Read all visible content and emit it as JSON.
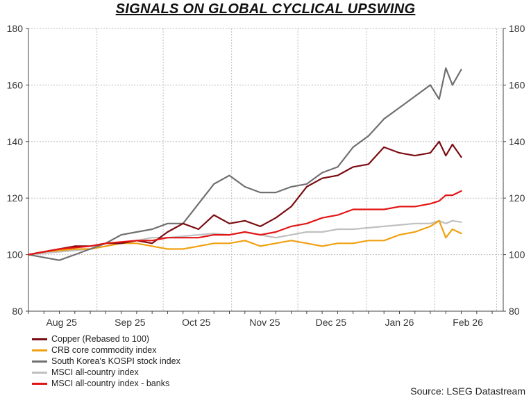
{
  "title": "SIGNALS ON GLOBAL CYCLICAL UPSWING",
  "source": "Source: LSEG Datastream",
  "chart_data": {
    "type": "line",
    "title": "SIGNALS ON GLOBAL CYCLICAL UPSWING",
    "xlabel": "",
    "ylabel": "",
    "ylim": [
      80,
      180
    ],
    "yticks": [
      80,
      100,
      120,
      140,
      160,
      180
    ],
    "xlim": [
      0,
      215
    ],
    "month_labels": [
      {
        "label": "Aug 25",
        "x": 15
      },
      {
        "label": "Sep 25",
        "x": 46
      },
      {
        "label": "Oct 25",
        "x": 76
      },
      {
        "label": "Nov 25",
        "x": 107
      },
      {
        "label": "Dec 25",
        "x": 137
      },
      {
        "label": "Jan 26",
        "x": 168
      },
      {
        "label": "Feb 26",
        "x": 199
      }
    ],
    "month_boundaries": [
      0,
      31,
      61,
      92,
      122,
      153,
      184,
      212
    ],
    "x": [
      0,
      7,
      14,
      21,
      28,
      35,
      42,
      49,
      56,
      63,
      70,
      77,
      84,
      91,
      98,
      105,
      112,
      119,
      126,
      133,
      140,
      147,
      154,
      161,
      168,
      175,
      182,
      186,
      189,
      192,
      196
    ],
    "series": [
      {
        "name": "Copper (Rebased to 100)",
        "color": "#7a0c12",
        "values": [
          100,
          101,
          102,
          103,
          103,
          104,
          104,
          105,
          104,
          108,
          111,
          109,
          114,
          111,
          112,
          110,
          113,
          117,
          124,
          127,
          128,
          131,
          132,
          138,
          136,
          135,
          136,
          140,
          135,
          139,
          134.5
        ]
      },
      {
        "name": "CRB core commodity index",
        "color": "#f0a010",
        "values": [
          100,
          101,
          101.5,
          102,
          102,
          103,
          104,
          104,
          103,
          102,
          102,
          103,
          104,
          104,
          105,
          103,
          104,
          105,
          104,
          103,
          104,
          104,
          105,
          105,
          107,
          108,
          110,
          112,
          106,
          109,
          107.5
        ]
      },
      {
        "name": "South Korea's KOSPI stock index",
        "color": "#707070",
        "values": [
          100,
          99,
          98,
          100,
          102,
          104,
          107,
          108,
          109,
          111,
          111,
          118,
          125,
          128,
          124,
          122,
          122,
          124,
          125,
          129,
          131,
          138,
          142,
          148,
          152,
          156,
          160,
          155,
          166,
          160,
          165.5
        ]
      },
      {
        "name": "MSCI all-country index",
        "color": "#c0c0c0",
        "values": [
          100,
          100.5,
          101,
          101.5,
          102,
          103,
          104,
          105,
          106,
          106,
          106.5,
          107,
          107.5,
          107,
          108,
          107,
          106,
          107,
          108,
          108,
          109,
          109,
          109.5,
          110,
          110.5,
          111,
          111,
          112,
          111,
          112,
          111.5
        ]
      },
      {
        "name": "MSCI all-country index - banks",
        "color": "#e31414",
        "values": [
          100,
          101,
          102,
          102.5,
          103,
          104,
          104.5,
          105,
          105,
          106,
          106,
          106,
          107,
          107,
          108,
          107,
          108,
          110,
          111,
          113,
          114,
          116,
          116,
          116,
          117,
          117,
          118,
          119,
          121,
          121,
          122.5
        ]
      }
    ],
    "legend_position": "bottom-left",
    "grid": true
  }
}
